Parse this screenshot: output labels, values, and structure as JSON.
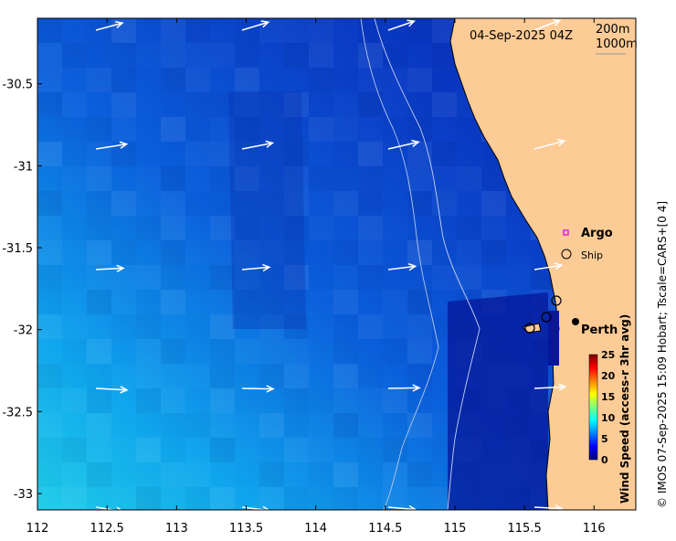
{
  "map": {
    "timestamp": "04-Sep-2025 04Z",
    "contours": [
      "200m",
      "1000m"
    ],
    "x_ticks": [
      "112",
      "112.5",
      "113",
      "113.5",
      "114",
      "114.5",
      "115",
      "115.5",
      "116"
    ],
    "y_ticks": [
      "-30.5",
      "-31",
      "-31.5",
      "-32",
      "-32.5",
      "-33"
    ],
    "lon_range": [
      112,
      116.3
    ],
    "lat_range": [
      -33.1,
      -30.1
    ],
    "legend": {
      "argo": "Argo",
      "ship": "Ship"
    },
    "city": "Perth",
    "colorbar": {
      "ticks": [
        "0",
        "5",
        "10",
        "15",
        "20",
        "25"
      ],
      "label": "Wind Speed (access-r 3hr avg)"
    },
    "credit": "© IMOS 07-Sep-2025 15:09 Hobart; Tscale=CARS+[0 4]",
    "colors": {
      "land": "#fccb96",
      "ocean_deep": "#0a2fb8",
      "ocean_light": "#18b4f0",
      "argo": "#e020e0"
    },
    "icons": {
      "argo": "square-marker-icon",
      "ship": "circle-marker-icon",
      "wind": "arrow-icon"
    }
  }
}
